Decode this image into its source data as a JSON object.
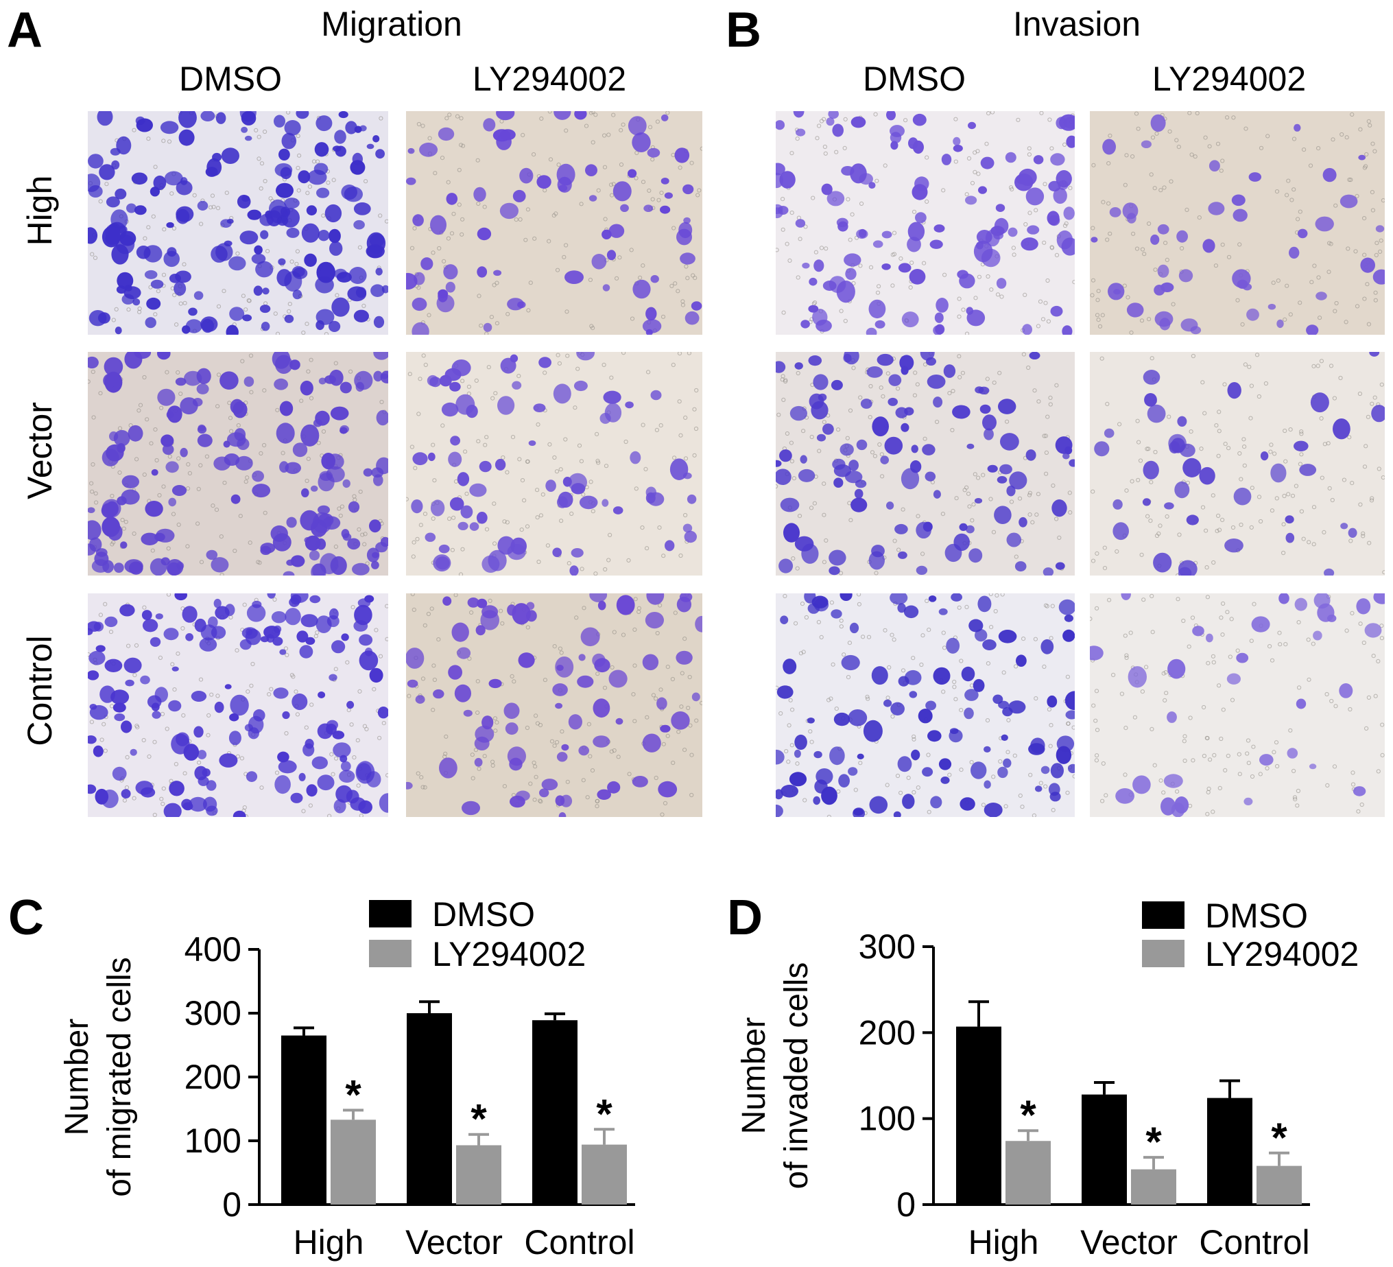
{
  "panels": {
    "A": {
      "letter": "A",
      "title": "Migration"
    },
    "B": {
      "letter": "B",
      "title": "Invasion"
    },
    "C": {
      "letter": "C"
    },
    "D": {
      "letter": "D"
    }
  },
  "column_headers": [
    "DMSO",
    "LY294002"
  ],
  "row_labels": [
    "High",
    "Vector",
    "Control"
  ],
  "micrographs": {
    "A": [
      {
        "row": "High",
        "col": "DMSO",
        "bg": "#e6e4ee",
        "density": 170,
        "stain": "#3d2fc9"
      },
      {
        "row": "High",
        "col": "LY294002",
        "bg": "#e2d8cc",
        "density": 70,
        "stain": "#6747d8"
      },
      {
        "row": "Vector",
        "col": "DMSO",
        "bg": "#ddd3cf",
        "density": 150,
        "stain": "#5d43d0"
      },
      {
        "row": "Vector",
        "col": "LY294002",
        "bg": "#ebe4dc",
        "density": 70,
        "stain": "#6a4fd6"
      },
      {
        "row": "Control",
        "col": "DMSO",
        "bg": "#ebe7f0",
        "density": 150,
        "stain": "#4a36cf"
      },
      {
        "row": "Control",
        "col": "LY294002",
        "bg": "#dfd5c8",
        "density": 75,
        "stain": "#6a48d4"
      }
    ],
    "B": [
      {
        "row": "High",
        "col": "DMSO",
        "bg": "#efebef",
        "density": 110,
        "stain": "#6c50d8"
      },
      {
        "row": "High",
        "col": "LY294002",
        "bg": "#e2d8cc",
        "density": 45,
        "stain": "#7659d8"
      },
      {
        "row": "Vector",
        "col": "DMSO",
        "bg": "#e7e1df",
        "density": 100,
        "stain": "#4d3acd"
      },
      {
        "row": "Vector",
        "col": "LY294002",
        "bg": "#ece7e2",
        "density": 38,
        "stain": "#5a44d0"
      },
      {
        "row": "Control",
        "col": "DMSO",
        "bg": "#ecebf2",
        "density": 100,
        "stain": "#3e31c7"
      },
      {
        "row": "Control",
        "col": "LY294002",
        "bg": "#eeebe9",
        "density": 32,
        "stain": "#8068dc"
      }
    ]
  },
  "chart_data": [
    {
      "panel": "C",
      "type": "bar",
      "categories": [
        "High",
        "Vector",
        "Control"
      ],
      "series": [
        {
          "name": "DMSO",
          "values": [
            265,
            300,
            289
          ],
          "errors": [
            12,
            18,
            10
          ],
          "color": "#000000"
        },
        {
          "name": "LY294002",
          "values": [
            133,
            93,
            94
          ],
          "errors": [
            15,
            17,
            24
          ],
          "color": "#999999"
        }
      ],
      "ylabel": [
        "Number",
        "of migrated cells"
      ],
      "ylim": [
        0,
        400
      ],
      "yticks": [
        0,
        100,
        200,
        300,
        400
      ],
      "significance": [
        "*",
        "*",
        "*"
      ],
      "legend": "top-right"
    },
    {
      "panel": "D",
      "type": "bar",
      "categories": [
        "High",
        "Vector",
        "Control"
      ],
      "series": [
        {
          "name": "DMSO",
          "values": [
            207,
            128,
            124
          ],
          "errors": [
            29,
            14,
            20
          ],
          "color": "#000000"
        },
        {
          "name": "LY294002",
          "values": [
            74,
            41,
            45
          ],
          "errors": [
            12,
            14,
            15
          ],
          "color": "#999999"
        }
      ],
      "ylabel": [
        "Number",
        "of invaded cells"
      ],
      "ylim": [
        0,
        300
      ],
      "yticks": [
        0,
        100,
        200,
        300
      ],
      "significance": [
        "*",
        "*",
        "*"
      ],
      "legend": "top-right"
    }
  ]
}
